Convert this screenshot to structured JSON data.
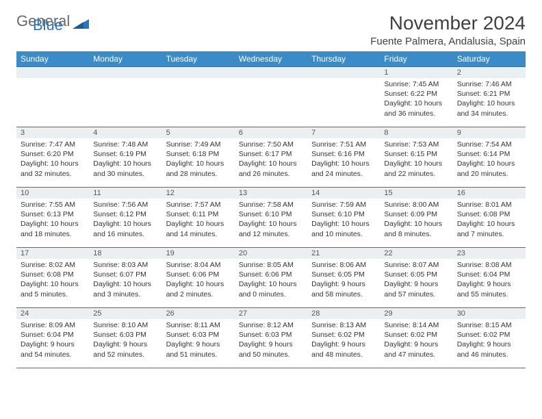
{
  "branding": {
    "word1": "General",
    "word2": "Blue",
    "logo_fill": "#2f75b6"
  },
  "header": {
    "title": "November 2024",
    "location": "Fuente Palmera, Andalusia, Spain"
  },
  "calendar": {
    "type": "table",
    "header_bg": "#3b8bc9",
    "header_fg": "#ffffff",
    "border_color": "#2f75b6",
    "daynum_bg": "#eceff1",
    "background_color": "#ffffff",
    "columns": [
      "Sunday",
      "Monday",
      "Tuesday",
      "Wednesday",
      "Thursday",
      "Friday",
      "Saturday"
    ],
    "weeks": [
      [
        null,
        null,
        null,
        null,
        null,
        {
          "n": "1",
          "sunrise": "7:45 AM",
          "sunset": "6:22 PM",
          "daylight": "10 hours and 36 minutes."
        },
        {
          "n": "2",
          "sunrise": "7:46 AM",
          "sunset": "6:21 PM",
          "daylight": "10 hours and 34 minutes."
        }
      ],
      [
        {
          "n": "3",
          "sunrise": "7:47 AM",
          "sunset": "6:20 PM",
          "daylight": "10 hours and 32 minutes."
        },
        {
          "n": "4",
          "sunrise": "7:48 AM",
          "sunset": "6:19 PM",
          "daylight": "10 hours and 30 minutes."
        },
        {
          "n": "5",
          "sunrise": "7:49 AM",
          "sunset": "6:18 PM",
          "daylight": "10 hours and 28 minutes."
        },
        {
          "n": "6",
          "sunrise": "7:50 AM",
          "sunset": "6:17 PM",
          "daylight": "10 hours and 26 minutes."
        },
        {
          "n": "7",
          "sunrise": "7:51 AM",
          "sunset": "6:16 PM",
          "daylight": "10 hours and 24 minutes."
        },
        {
          "n": "8",
          "sunrise": "7:53 AM",
          "sunset": "6:15 PM",
          "daylight": "10 hours and 22 minutes."
        },
        {
          "n": "9",
          "sunrise": "7:54 AM",
          "sunset": "6:14 PM",
          "daylight": "10 hours and 20 minutes."
        }
      ],
      [
        {
          "n": "10",
          "sunrise": "7:55 AM",
          "sunset": "6:13 PM",
          "daylight": "10 hours and 18 minutes."
        },
        {
          "n": "11",
          "sunrise": "7:56 AM",
          "sunset": "6:12 PM",
          "daylight": "10 hours and 16 minutes."
        },
        {
          "n": "12",
          "sunrise": "7:57 AM",
          "sunset": "6:11 PM",
          "daylight": "10 hours and 14 minutes."
        },
        {
          "n": "13",
          "sunrise": "7:58 AM",
          "sunset": "6:10 PM",
          "daylight": "10 hours and 12 minutes."
        },
        {
          "n": "14",
          "sunrise": "7:59 AM",
          "sunset": "6:10 PM",
          "daylight": "10 hours and 10 minutes."
        },
        {
          "n": "15",
          "sunrise": "8:00 AM",
          "sunset": "6:09 PM",
          "daylight": "10 hours and 8 minutes."
        },
        {
          "n": "16",
          "sunrise": "8:01 AM",
          "sunset": "6:08 PM",
          "daylight": "10 hours and 7 minutes."
        }
      ],
      [
        {
          "n": "17",
          "sunrise": "8:02 AM",
          "sunset": "6:08 PM",
          "daylight": "10 hours and 5 minutes."
        },
        {
          "n": "18",
          "sunrise": "8:03 AM",
          "sunset": "6:07 PM",
          "daylight": "10 hours and 3 minutes."
        },
        {
          "n": "19",
          "sunrise": "8:04 AM",
          "sunset": "6:06 PM",
          "daylight": "10 hours and 2 minutes."
        },
        {
          "n": "20",
          "sunrise": "8:05 AM",
          "sunset": "6:06 PM",
          "daylight": "10 hours and 0 minutes."
        },
        {
          "n": "21",
          "sunrise": "8:06 AM",
          "sunset": "6:05 PM",
          "daylight": "9 hours and 58 minutes."
        },
        {
          "n": "22",
          "sunrise": "8:07 AM",
          "sunset": "6:05 PM",
          "daylight": "9 hours and 57 minutes."
        },
        {
          "n": "23",
          "sunrise": "8:08 AM",
          "sunset": "6:04 PM",
          "daylight": "9 hours and 55 minutes."
        }
      ],
      [
        {
          "n": "24",
          "sunrise": "8:09 AM",
          "sunset": "6:04 PM",
          "daylight": "9 hours and 54 minutes."
        },
        {
          "n": "25",
          "sunrise": "8:10 AM",
          "sunset": "6:03 PM",
          "daylight": "9 hours and 52 minutes."
        },
        {
          "n": "26",
          "sunrise": "8:11 AM",
          "sunset": "6:03 PM",
          "daylight": "9 hours and 51 minutes."
        },
        {
          "n": "27",
          "sunrise": "8:12 AM",
          "sunset": "6:03 PM",
          "daylight": "9 hours and 50 minutes."
        },
        {
          "n": "28",
          "sunrise": "8:13 AM",
          "sunset": "6:02 PM",
          "daylight": "9 hours and 48 minutes."
        },
        {
          "n": "29",
          "sunrise": "8:14 AM",
          "sunset": "6:02 PM",
          "daylight": "9 hours and 47 minutes."
        },
        {
          "n": "30",
          "sunrise": "8:15 AM",
          "sunset": "6:02 PM",
          "daylight": "9 hours and 46 minutes."
        }
      ]
    ],
    "labels": {
      "sunrise": "Sunrise:",
      "sunset": "Sunset:",
      "daylight": "Daylight:"
    }
  }
}
